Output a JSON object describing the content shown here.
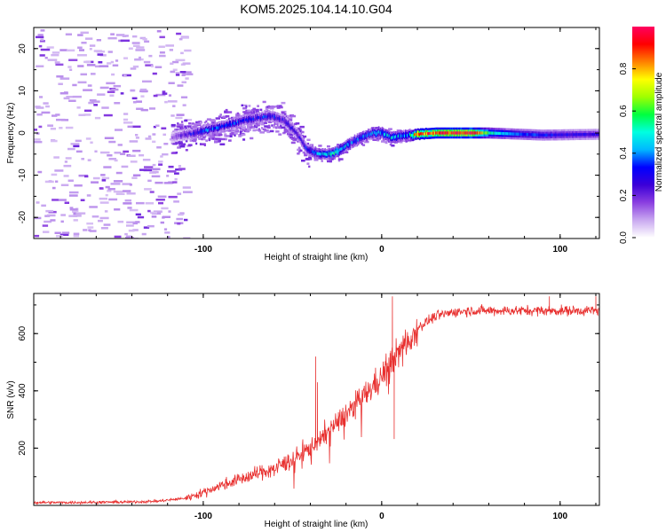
{
  "title": "KOM5.2025.104.14.10.G04",
  "chart_data": [
    {
      "type": "heatmap",
      "xlabel": "Height of straight line (km)",
      "ylabel": "Frequency (Hz)",
      "xlim": [
        -195,
        122
      ],
      "ylim": [
        -25,
        25
      ],
      "x_ticks": [
        -100,
        0,
        100
      ],
      "y_ticks": [
        -20,
        -10,
        0,
        10,
        20
      ],
      "colorbar": {
        "label": "Normalized spectral amplitude",
        "range": [
          0.0,
          1.0
        ],
        "ticks": [
          0.0,
          0.2,
          0.4,
          0.6,
          0.8
        ],
        "colormap": [
          "#ffffff",
          "#c9a8f0",
          "#8a3ee0",
          "#3b00d8",
          "#0000ff",
          "#00b8ff",
          "#00ffe0",
          "#00ff40",
          "#a0ff00",
          "#ffff00",
          "#ff8000",
          "#ff0000",
          "#ff0060"
        ]
      },
      "ridge_frequency": {
        "x": [
          -118,
          -105,
          -95,
          -85,
          -78,
          -70,
          -62,
          -55,
          -48,
          -42,
          -35,
          -28,
          -20,
          -12,
          -5,
          0,
          5,
          15,
          30,
          60,
          90,
          122
        ],
        "y": [
          -1,
          0,
          1,
          2,
          3,
          3.5,
          4,
          3,
          0,
          -4,
          -5,
          -5,
          -3,
          -1,
          0,
          0,
          -1,
          -0.5,
          0,
          0,
          -0.5,
          -0.3
        ]
      },
      "ridge_amplitude": {
        "x": [
          -118,
          -100,
          -80,
          -60,
          -45,
          -35,
          -25,
          -15,
          0,
          15,
          20,
          50,
          60,
          70,
          80,
          100,
          122
        ],
        "y": [
          0.15,
          0.35,
          0.3,
          0.3,
          0.25,
          0.4,
          0.5,
          0.35,
          0.45,
          0.4,
          0.85,
          1.0,
          0.55,
          0.4,
          0.35,
          0.3,
          0.25
        ]
      },
      "noise_region_x": [
        -195,
        -110
      ]
    },
    {
      "type": "line",
      "xlabel": "Height of straight line (km)",
      "ylabel": "SNR (v/v)",
      "xlim": [
        -195,
        122
      ],
      "ylim": [
        0,
        740
      ],
      "x_ticks": [
        -100,
        0,
        100
      ],
      "y_ticks": [
        200,
        400,
        600
      ],
      "color": "#e8302f",
      "series": [
        {
          "x": [
            -195,
            -180,
            -160,
            -140,
            -125,
            -110,
            -100,
            -90,
            -80,
            -70,
            -60,
            -50,
            -45,
            -40,
            -30,
            -20,
            -10,
            0,
            5,
            10,
            20,
            30,
            40,
            50,
            60,
            80,
            100,
            122
          ],
          "values": [
            10,
            10,
            11,
            12,
            15,
            25,
            45,
            70,
            90,
            110,
            130,
            160,
            180,
            200,
            260,
            320,
            380,
            450,
            500,
            540,
            620,
            660,
            675,
            680,
            680,
            680,
            680,
            680
          ]
        }
      ],
      "spikes": [
        {
          "x": -37,
          "y": 520
        },
        {
          "x": -36,
          "y": 430
        },
        {
          "x": 5,
          "y": 540
        },
        {
          "x": 6,
          "y": 730
        },
        {
          "x": 7,
          "y": 232
        },
        {
          "x": 94,
          "y": 730
        },
        {
          "x": 120,
          "y": 730
        }
      ]
    }
  ]
}
